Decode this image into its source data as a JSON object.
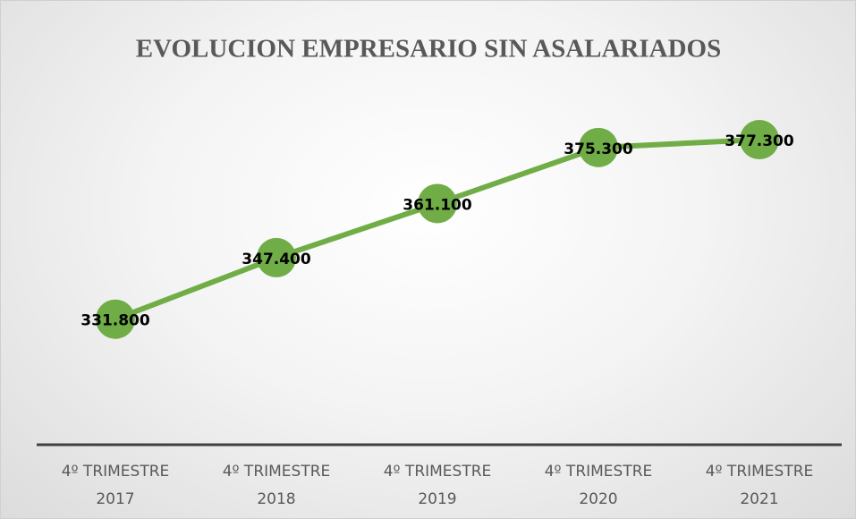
{
  "chart_data": {
    "type": "line",
    "title": "EVOLUCION EMPRESARIO SIN ASALARIADOS",
    "categories": [
      "4º TRIMESTRE 2017",
      "4º TRIMESTRE 2018",
      "4º TRIMESTRE 2019",
      "4º TRIMESTRE 2020",
      "4º TRIMESTRE 2021"
    ],
    "series": [
      {
        "name": "Empresario sin asalariados",
        "color": "#70ad47",
        "values": [
          331800,
          347400,
          361100,
          375300,
          377300
        ],
        "value_labels": [
          "331.800",
          "347.400",
          "361.100",
          "375.300",
          "377.300"
        ]
      }
    ],
    "ylim": [
      300000,
      390000
    ]
  }
}
